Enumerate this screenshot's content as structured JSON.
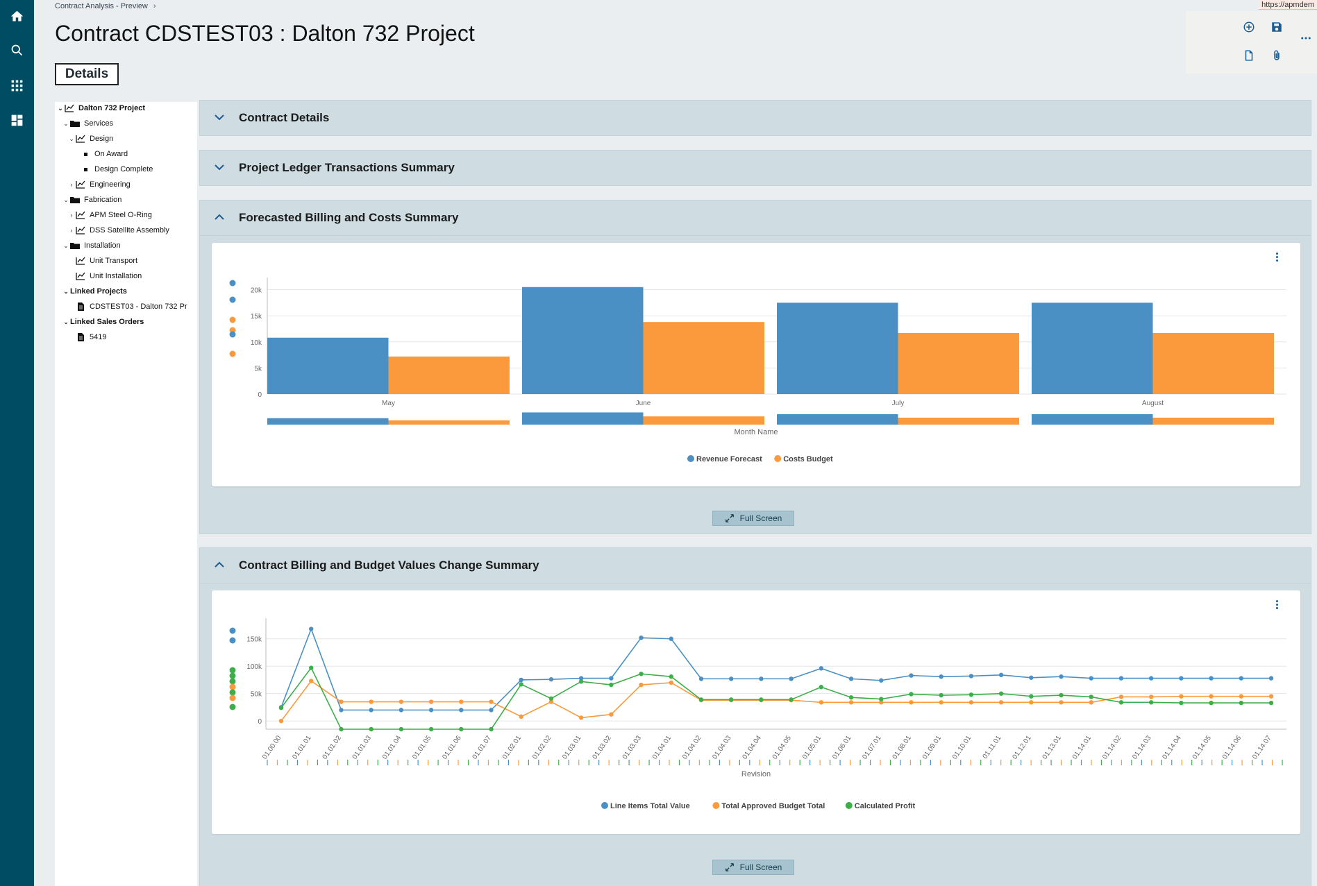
{
  "breadcrumb": {
    "label": "Contract Analysis - Preview",
    "separator": "›"
  },
  "url_stub": "https://apmdem",
  "page_title": "Contract CDSTEST03 : Dalton 732 Project",
  "details_tab": "Details",
  "icons": {
    "rail": [
      "home-icon",
      "search-icon",
      "apps-grid-icon",
      "dashboard-icon"
    ],
    "toolbar": [
      "add-circle-icon",
      "save-icon",
      "more-icon",
      "document-icon",
      "attachment-icon"
    ]
  },
  "tree": [
    {
      "label": "Dalton 732 Project",
      "bold": true,
      "toggle": "⌄",
      "icon": "chart-icon"
    },
    {
      "label": "Services",
      "toggle": "⌄",
      "icon": "folder-icon"
    },
    {
      "label": "Design",
      "toggle": "⌄",
      "icon": "chart-icon"
    },
    {
      "label": "On Award",
      "toggle": "",
      "icon": "bullet"
    },
    {
      "label": "Design Complete",
      "toggle": "",
      "icon": "bullet"
    },
    {
      "label": "Engineering",
      "toggle": "›",
      "icon": "chart-icon"
    },
    {
      "label": "Fabrication",
      "toggle": "⌄",
      "icon": "folder-icon"
    },
    {
      "label": "APM Steel O-Ring",
      "toggle": "›",
      "icon": "chart-icon"
    },
    {
      "label": "DSS Satellite Assembly",
      "toggle": "›",
      "icon": "chart-icon"
    },
    {
      "label": "Installation",
      "toggle": "⌄",
      "icon": "folder-icon"
    },
    {
      "label": "Unit Transport",
      "toggle": "",
      "icon": "chart-icon"
    },
    {
      "label": "Unit Installation",
      "toggle": "",
      "icon": "chart-icon"
    },
    {
      "label": "Linked Projects",
      "bold": true,
      "toggle": "⌄",
      "icon": ""
    },
    {
      "label": "CDSTEST03 - Dalton 732 Pr",
      "toggle": "",
      "icon": "file-icon"
    },
    {
      "label": "Linked Sales Orders",
      "bold": true,
      "toggle": "⌄",
      "icon": ""
    },
    {
      "label": "5419",
      "toggle": "",
      "icon": "file-icon"
    }
  ],
  "sections": [
    {
      "label": "Contract Details",
      "expanded": false
    },
    {
      "label": "Project Ledger Transactions Summary",
      "expanded": false
    },
    {
      "label": "Forecasted Billing and Costs Summary",
      "expanded": true
    },
    {
      "label": "Contract Billing and Budget Values Change Summary",
      "expanded": true
    }
  ],
  "full_screen_label": "Full Screen",
  "colors": {
    "blue": "#4a90c4",
    "orange": "#fa9a3c",
    "green": "#3cae4a",
    "rail": "#004d63"
  },
  "chart_data": [
    {
      "type": "bar",
      "categories": [
        "May",
        "June",
        "July",
        "August"
      ],
      "series": [
        {
          "name": "Revenue Forecast",
          "values": [
            10800,
            20500,
            17500,
            17500
          ]
        },
        {
          "name": "Costs Budget",
          "values": [
            7200,
            13800,
            11700,
            11700
          ]
        }
      ],
      "yticks": [
        "0",
        "5k",
        "10k",
        "15k",
        "20k"
      ],
      "ylim": [
        0,
        21000
      ],
      "xlabel": "Month Name",
      "legend": "bottom"
    },
    {
      "type": "line",
      "x": [
        "01.00.00",
        "01.01.01",
        "01.01.02",
        "01.01.03",
        "01.01.04",
        "01.01.05",
        "01.01.06",
        "01.01.07",
        "01.02.01",
        "01.02.02",
        "01.03.01",
        "01.03.02",
        "01.03.03",
        "01.04.01",
        "01.04.02",
        "01.04.03",
        "01.04.04",
        "01.04.05",
        "01.05.01",
        "01.06.01",
        "01.07.01",
        "01.08.01",
        "01.09.01",
        "01.10.01",
        "01.11.01",
        "01.12.01",
        "01.13.01",
        "01.14.01",
        "01.14.02",
        "01.14.03",
        "01.14.04",
        "01.14.05",
        "01.14.06",
        "01.14.07"
      ],
      "series": [
        {
          "name": "Line Items Total Value",
          "values": [
            25000,
            168000,
            20000,
            20000,
            20000,
            20000,
            20000,
            20000,
            75000,
            76000,
            78000,
            78000,
            152000,
            150000,
            77000,
            77000,
            77000,
            77000,
            96000,
            77000,
            74000,
            83000,
            81000,
            82000,
            84000,
            79000,
            81000,
            78000,
            78000,
            78000,
            78000,
            78000,
            78000,
            78000
          ]
        },
        {
          "name": "Total Approved Budget Total",
          "values": [
            0,
            73000,
            35000,
            35000,
            35000,
            35000,
            35000,
            35000,
            8000,
            35000,
            6000,
            12000,
            66000,
            70000,
            38000,
            38000,
            38000,
            38000,
            34000,
            34000,
            34000,
            34000,
            34000,
            34000,
            34000,
            34000,
            34000,
            34000,
            44000,
            44000,
            45000,
            45000,
            45000,
            45000
          ]
        },
        {
          "name": "Calculated Profit",
          "values": [
            24000,
            97000,
            -15000,
            -15000,
            -15000,
            -15000,
            -15000,
            -15000,
            67000,
            41000,
            72000,
            66000,
            86000,
            81000,
            39000,
            39000,
            39000,
            39000,
            62000,
            43000,
            40000,
            49000,
            47000,
            48000,
            50000,
            45000,
            47000,
            44000,
            34000,
            34000,
            33000,
            33000,
            33000,
            33000
          ]
        }
      ],
      "yticks": [
        "0",
        "50k",
        "100k",
        "150k"
      ],
      "ylim": [
        -15000,
        175000
      ],
      "xlabel": "Revision",
      "legend": "bottom"
    }
  ]
}
